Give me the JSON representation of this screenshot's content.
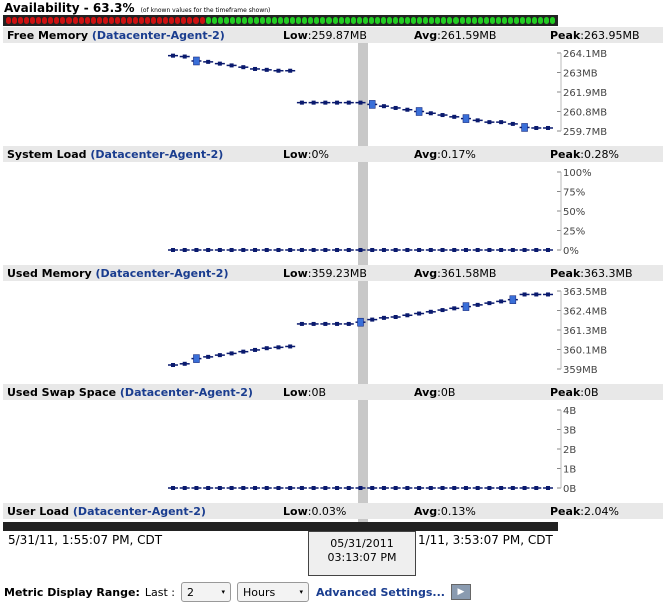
{
  "availability": {
    "title": "Availability - 63.3%",
    "note": "(of known values for the timeframe shown)",
    "down_color": "#cc1111",
    "up_color": "#22cc22",
    "down_fraction": 0.367
  },
  "metrics": [
    {
      "name": "Free Memory",
      "agent": "(Datacenter-Agent-2)",
      "low_label": "Low",
      "low": ":259.87MB",
      "avg_label": "Avg",
      "avg": ":261.59MB",
      "peak_label": "Peak",
      "peak": ":263.95MB",
      "ticks": [
        "264.1MB",
        "263MB",
        "261.9MB",
        "260.8MB",
        "259.7MB"
      ]
    },
    {
      "name": "System Load",
      "agent": "(Datacenter-Agent-2)",
      "low_label": "Low",
      "low": ":0%",
      "avg_label": "Avg",
      "avg": ":0.17%",
      "peak_label": "Peak",
      "peak": ":0.28%",
      "ticks": [
        "100%",
        "75%",
        "50%",
        "25%",
        "0%"
      ]
    },
    {
      "name": "Used Memory",
      "agent": "(Datacenter-Agent-2)",
      "low_label": "Low",
      "low": ":359.23MB",
      "avg_label": "Avg",
      "avg": ":361.58MB",
      "peak_label": "Peak",
      "peak": ":363.3MB",
      "ticks": [
        "363.5MB",
        "362.4MB",
        "361.3MB",
        "360.1MB",
        "359MB"
      ]
    },
    {
      "name": "Used Swap Space",
      "agent": "(Datacenter-Agent-2)",
      "low_label": "Low",
      "low": ":0B",
      "avg_label": "Avg",
      "avg": ":0B",
      "peak_label": "Peak",
      "peak": ":0B",
      "ticks": [
        "4B",
        "3B",
        "2B",
        "1B",
        "0B"
      ]
    },
    {
      "name": "User Load",
      "agent": "(Datacenter-Agent-2)",
      "low_label": "Low",
      "low": ":0.03%",
      "avg_label": "Avg",
      "avg": ":0.13%",
      "peak_label": "Peak",
      "peak": ":2.04%",
      "ticks": []
    }
  ],
  "chart_data": [
    {
      "type": "scatter",
      "title": "Free Memory",
      "ylim": [
        259.7,
        264.1
      ],
      "y": [
        263.95,
        263.9,
        263.65,
        263.6,
        263.5,
        263.4,
        263.3,
        263.2,
        263.15,
        263.1,
        263.1,
        261.3,
        261.3,
        261.3,
        261.3,
        261.3,
        261.3,
        261.2,
        261.1,
        261.0,
        260.9,
        260.8,
        260.7,
        260.6,
        260.5,
        260.4,
        260.3,
        260.2,
        260.2,
        260.1,
        259.9,
        259.87,
        259.87
      ]
    },
    {
      "type": "scatter",
      "title": "System Load",
      "ylim": [
        0,
        100
      ],
      "y": [
        0,
        0,
        0,
        0,
        0,
        0,
        0,
        0,
        0,
        0,
        0,
        0,
        0,
        0,
        0,
        0,
        0,
        0,
        0,
        0,
        0,
        0,
        0,
        0,
        0,
        0,
        0,
        0,
        0,
        0,
        0,
        0,
        0
      ]
    },
    {
      "type": "scatter",
      "title": "Used Memory",
      "ylim": [
        359,
        363.5
      ],
      "y": [
        359.23,
        359.3,
        359.6,
        359.7,
        359.8,
        359.9,
        360.0,
        360.1,
        360.2,
        360.25,
        360.3,
        361.6,
        361.6,
        361.6,
        361.6,
        361.6,
        361.7,
        361.85,
        361.95,
        362.0,
        362.1,
        362.2,
        362.3,
        362.4,
        362.5,
        362.6,
        362.7,
        362.8,
        362.9,
        363.0,
        363.3,
        363.3,
        363.3
      ]
    },
    {
      "type": "scatter",
      "title": "Used Swap Space",
      "ylim": [
        0,
        4
      ],
      "y": [
        0,
        0,
        0,
        0,
        0,
        0,
        0,
        0,
        0,
        0,
        0,
        0,
        0,
        0,
        0,
        0,
        0,
        0,
        0,
        0,
        0,
        0,
        0,
        0,
        0,
        0,
        0,
        0,
        0,
        0,
        0,
        0,
        0
      ]
    }
  ],
  "highlight_indices": [
    [
      2,
      17,
      21,
      25,
      30
    ],
    [],
    [
      2,
      16,
      25,
      29
    ],
    []
  ],
  "timeline": {
    "start": "5/31/11, 1:55:07 PM, CDT",
    "end": "1/11, 3:53:07 PM, CDT",
    "tooltip_date": "05/31/2011",
    "tooltip_time": "03:13:07 PM"
  },
  "range": {
    "label": "Metric Display Range:",
    "last_label": "Last :",
    "count": "2",
    "unit": "Hours",
    "advanced": "Advanced Settings..."
  },
  "colors": {
    "point": "#0a1a6e",
    "highlight": "#3a6fd8",
    "agent_link": "#1a3d8f"
  }
}
